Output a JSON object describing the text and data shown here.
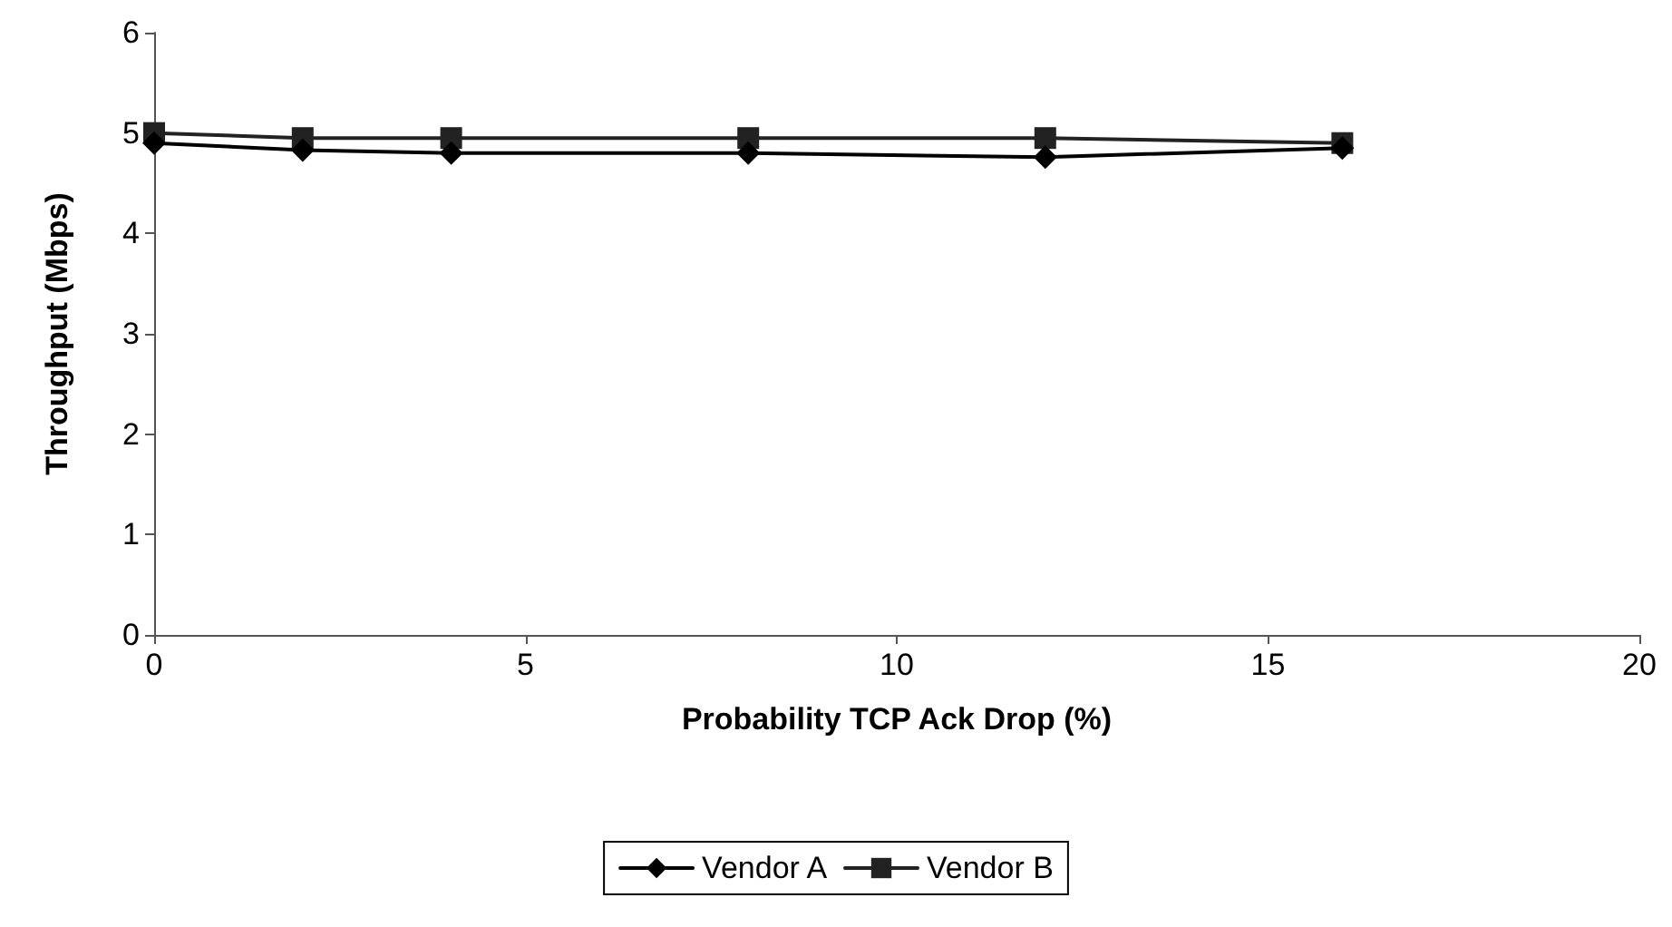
{
  "chart_data": {
    "type": "line",
    "xlabel": "Probability TCP Ack Drop (%)",
    "ylabel": "Throughput (Mbps)",
    "x": [
      0,
      2,
      4,
      8,
      12,
      16
    ],
    "series": [
      {
        "name": "Vendor A",
        "color": "#000000",
        "marker": "diamond",
        "values": [
          4.9,
          4.83,
          4.8,
          4.8,
          4.76,
          4.85
        ]
      },
      {
        "name": "Vendor B",
        "color": "#222222",
        "marker": "square",
        "values": [
          5.0,
          4.95,
          4.95,
          4.95,
          4.95,
          4.9
        ]
      }
    ],
    "xlim": [
      0,
      20
    ],
    "xticks": [
      0,
      5,
      10,
      15,
      20
    ],
    "ylim": [
      0,
      6
    ],
    "yticks": [
      0,
      1,
      2,
      3,
      4,
      5,
      6
    ],
    "grid": false,
    "legend": "bottom"
  }
}
